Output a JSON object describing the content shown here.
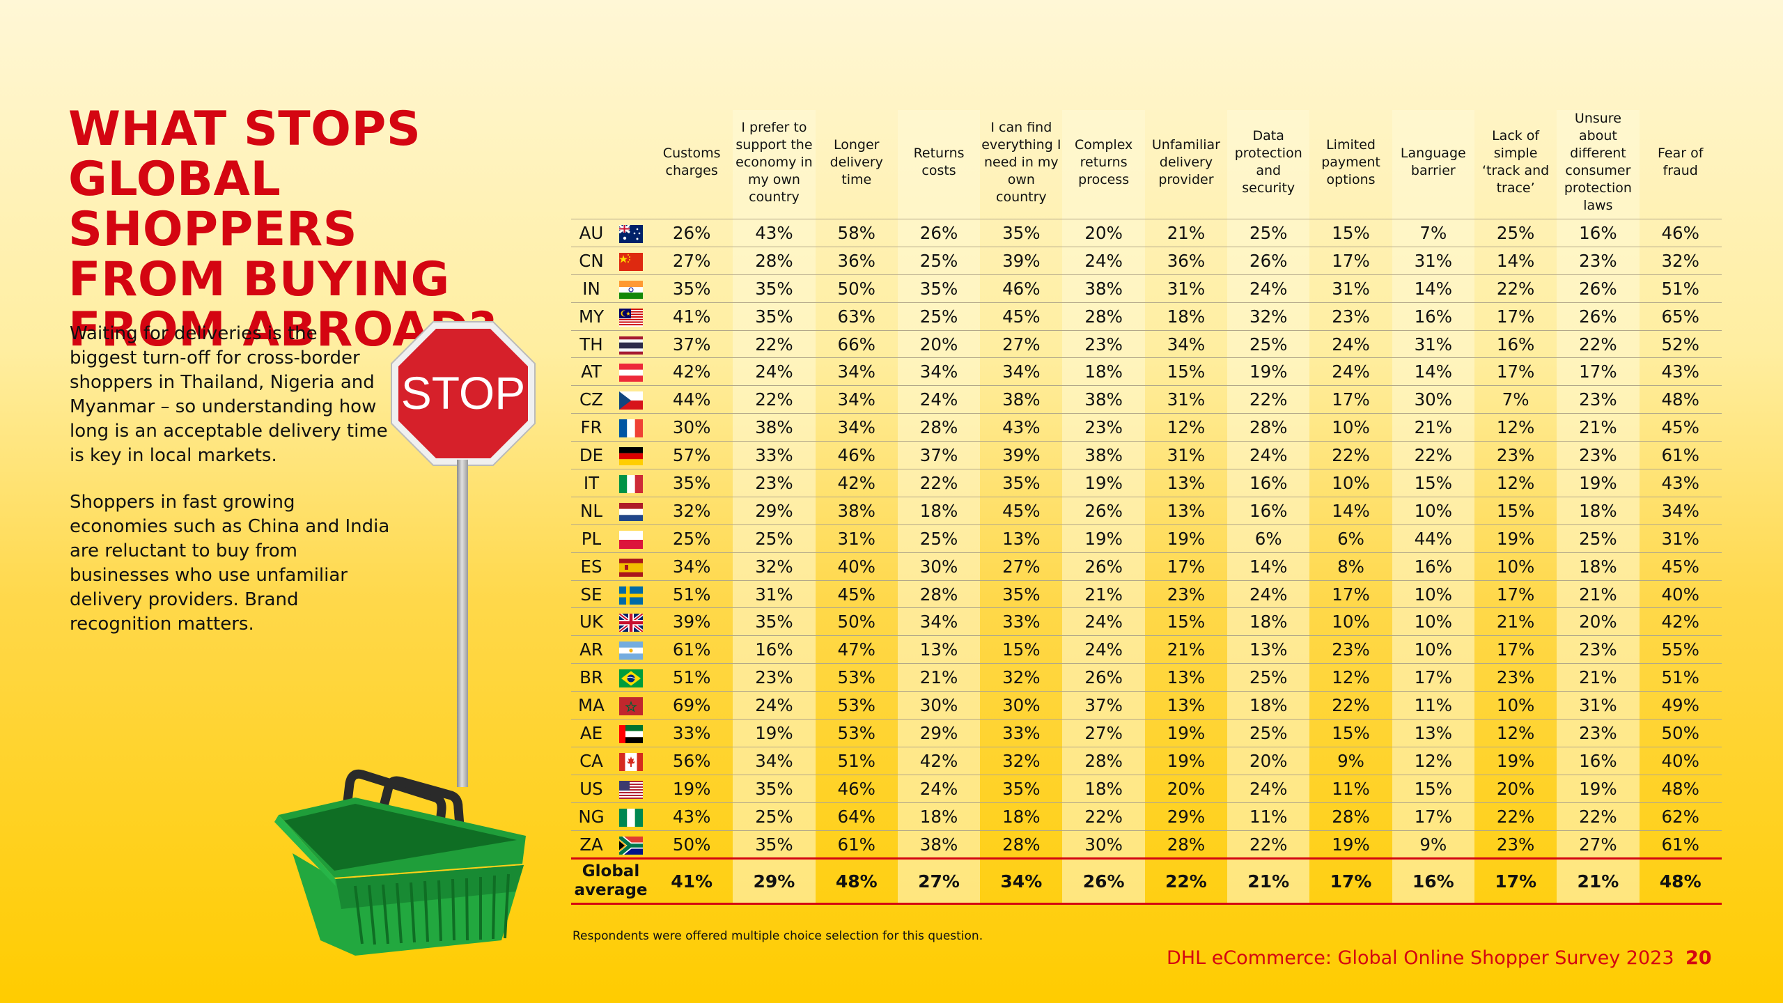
{
  "title_lines": [
    "WHAT STOPS",
    "GLOBAL SHOPPERS",
    "FROM BUYING",
    "FROM ABROAD?"
  ],
  "paragraph_1": "Waiting for deliveries is the biggest turn-off for cross-border shoppers in Thailand, Nigeria and Myanmar – so understanding how long is an acceptable delivery time is key in local markets.",
  "paragraph_2": "Shoppers in fast growing economies such as China and India are reluctant to buy from businesses who use unfamiliar delivery providers. Brand recognition matters.",
  "stop_sign_text": "STOP",
  "columns": [
    "Customs charges",
    "I prefer to support the economy in my own country",
    "Longer delivery time",
    "Returns costs",
    "I can find everything I need in my own country",
    "Complex returns process",
    "Unfamiliar delivery provider",
    "Data protection and security",
    "Limited payment options",
    "Language barrier",
    "Lack of simple ‘track and trace’",
    "Unsure about different consumer protection laws",
    "Fear of fraud"
  ],
  "rows": [
    {
      "code": "AU",
      "flag": "australia-flag-icon",
      "values": [
        "26%",
        "43%",
        "58%",
        "26%",
        "35%",
        "20%",
        "21%",
        "25%",
        "15%",
        "7%",
        "25%",
        "16%",
        "46%"
      ]
    },
    {
      "code": "CN",
      "flag": "china-flag-icon",
      "values": [
        "27%",
        "28%",
        "36%",
        "25%",
        "39%",
        "24%",
        "36%",
        "26%",
        "17%",
        "31%",
        "14%",
        "23%",
        "32%"
      ]
    },
    {
      "code": "IN",
      "flag": "india-flag-icon",
      "values": [
        "35%",
        "35%",
        "50%",
        "35%",
        "46%",
        "38%",
        "31%",
        "24%",
        "31%",
        "14%",
        "22%",
        "26%",
        "51%"
      ]
    },
    {
      "code": "MY",
      "flag": "malaysia-flag-icon",
      "values": [
        "41%",
        "35%",
        "63%",
        "25%",
        "45%",
        "28%",
        "18%",
        "32%",
        "23%",
        "16%",
        "17%",
        "26%",
        "65%"
      ]
    },
    {
      "code": "TH",
      "flag": "thailand-flag-icon",
      "values": [
        "37%",
        "22%",
        "66%",
        "20%",
        "27%",
        "23%",
        "34%",
        "25%",
        "24%",
        "31%",
        "16%",
        "22%",
        "52%"
      ]
    },
    {
      "code": "AT",
      "flag": "austria-flag-icon",
      "values": [
        "42%",
        "24%",
        "34%",
        "34%",
        "34%",
        "18%",
        "15%",
        "19%",
        "24%",
        "14%",
        "17%",
        "17%",
        "43%"
      ]
    },
    {
      "code": "CZ",
      "flag": "czechia-flag-icon",
      "values": [
        "44%",
        "22%",
        "34%",
        "24%",
        "38%",
        "38%",
        "31%",
        "22%",
        "17%",
        "30%",
        "7%",
        "23%",
        "48%"
      ]
    },
    {
      "code": "FR",
      "flag": "france-flag-icon",
      "values": [
        "30%",
        "38%",
        "34%",
        "28%",
        "43%",
        "23%",
        "12%",
        "28%",
        "10%",
        "21%",
        "12%",
        "21%",
        "45%"
      ]
    },
    {
      "code": "DE",
      "flag": "germany-flag-icon",
      "values": [
        "57%",
        "33%",
        "46%",
        "37%",
        "39%",
        "38%",
        "31%",
        "24%",
        "22%",
        "22%",
        "23%",
        "23%",
        "61%"
      ]
    },
    {
      "code": "IT",
      "flag": "italy-flag-icon",
      "values": [
        "35%",
        "23%",
        "42%",
        "22%",
        "35%",
        "19%",
        "13%",
        "16%",
        "10%",
        "15%",
        "12%",
        "19%",
        "43%"
      ]
    },
    {
      "code": "NL",
      "flag": "netherlands-flag-icon",
      "values": [
        "32%",
        "29%",
        "38%",
        "18%",
        "45%",
        "26%",
        "13%",
        "16%",
        "14%",
        "10%",
        "15%",
        "18%",
        "34%"
      ]
    },
    {
      "code": "PL",
      "flag": "poland-flag-icon",
      "values": [
        "25%",
        "25%",
        "31%",
        "25%",
        "13%",
        "19%",
        "19%",
        "6%",
        "6%",
        "44%",
        "19%",
        "25%",
        "31%"
      ]
    },
    {
      "code": "ES",
      "flag": "spain-flag-icon",
      "values": [
        "34%",
        "32%",
        "40%",
        "30%",
        "27%",
        "26%",
        "17%",
        "14%",
        "8%",
        "16%",
        "10%",
        "18%",
        "45%"
      ]
    },
    {
      "code": "SE",
      "flag": "sweden-flag-icon",
      "values": [
        "51%",
        "31%",
        "45%",
        "28%",
        "35%",
        "21%",
        "23%",
        "24%",
        "17%",
        "10%",
        "17%",
        "21%",
        "40%"
      ]
    },
    {
      "code": "UK",
      "flag": "uk-flag-icon",
      "values": [
        "39%",
        "35%",
        "50%",
        "34%",
        "33%",
        "24%",
        "15%",
        "18%",
        "10%",
        "10%",
        "21%",
        "20%",
        "42%"
      ]
    },
    {
      "code": "AR",
      "flag": "argentina-flag-icon",
      "values": [
        "61%",
        "16%",
        "47%",
        "13%",
        "15%",
        "24%",
        "21%",
        "13%",
        "23%",
        "10%",
        "17%",
        "23%",
        "55%"
      ]
    },
    {
      "code": "BR",
      "flag": "brazil-flag-icon",
      "values": [
        "51%",
        "23%",
        "53%",
        "21%",
        "32%",
        "26%",
        "13%",
        "25%",
        "12%",
        "17%",
        "23%",
        "21%",
        "51%"
      ]
    },
    {
      "code": "MA",
      "flag": "morocco-flag-icon",
      "values": [
        "69%",
        "24%",
        "53%",
        "30%",
        "30%",
        "37%",
        "13%",
        "18%",
        "22%",
        "11%",
        "10%",
        "31%",
        "49%"
      ]
    },
    {
      "code": "AE",
      "flag": "uae-flag-icon",
      "values": [
        "33%",
        "19%",
        "53%",
        "29%",
        "33%",
        "27%",
        "19%",
        "25%",
        "15%",
        "13%",
        "12%",
        "23%",
        "50%"
      ]
    },
    {
      "code": "CA",
      "flag": "canada-flag-icon",
      "values": [
        "56%",
        "34%",
        "51%",
        "42%",
        "32%",
        "28%",
        "19%",
        "20%",
        "9%",
        "12%",
        "19%",
        "16%",
        "40%"
      ]
    },
    {
      "code": "US",
      "flag": "usa-flag-icon",
      "values": [
        "19%",
        "35%",
        "46%",
        "24%",
        "35%",
        "18%",
        "20%",
        "24%",
        "11%",
        "15%",
        "20%",
        "19%",
        "48%"
      ]
    },
    {
      "code": "NG",
      "flag": "nigeria-flag-icon",
      "values": [
        "43%",
        "25%",
        "64%",
        "18%",
        "18%",
        "22%",
        "29%",
        "11%",
        "28%",
        "17%",
        "22%",
        "22%",
        "62%"
      ]
    },
    {
      "code": "ZA",
      "flag": "south-africa-flag-icon",
      "values": [
        "50%",
        "35%",
        "61%",
        "38%",
        "28%",
        "30%",
        "28%",
        "22%",
        "19%",
        "9%",
        "23%",
        "27%",
        "61%"
      ]
    }
  ],
  "global_average": {
    "label_lines": [
      "Global",
      "average"
    ],
    "values": [
      "41%",
      "29%",
      "48%",
      "27%",
      "34%",
      "26%",
      "22%",
      "21%",
      "17%",
      "16%",
      "17%",
      "21%",
      "48%"
    ]
  },
  "footnote": "Respondents were offered multiple choice selection for this question.",
  "footer_title": "DHL eCommerce: Global Online Shopper Survey 2023",
  "page_number": "20",
  "colors": {
    "accent_red": "#d40511",
    "dhl_yellow": "#ffcc00"
  }
}
